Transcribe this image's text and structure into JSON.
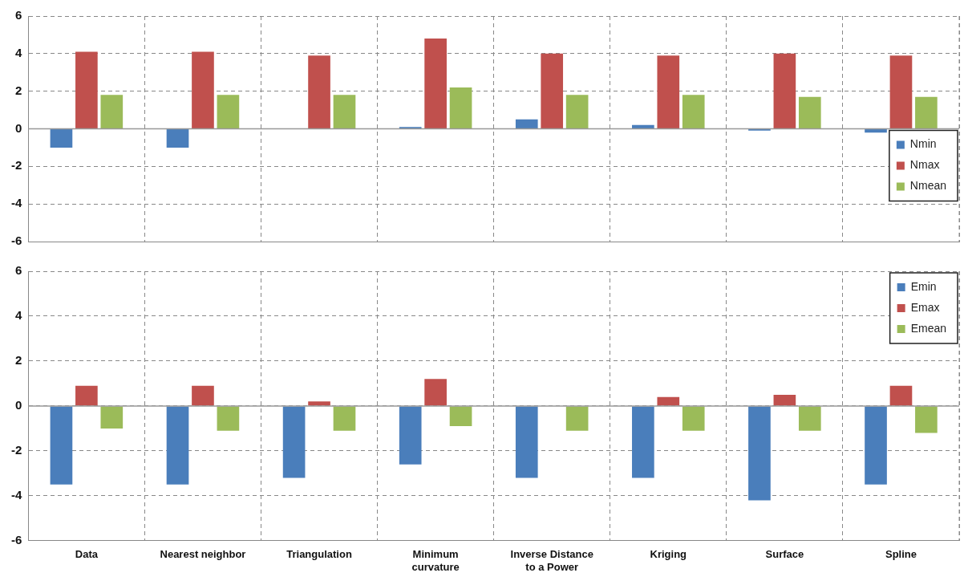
{
  "chart_data": [
    {
      "type": "bar",
      "categories": [
        null,
        null,
        null,
        null,
        null,
        null,
        null,
        null
      ],
      "series": [
        {
          "name": "Nmin",
          "color": "#4a7ebb",
          "values": [
            -1.0,
            -1.0,
            0,
            0.1,
            0.5,
            0.2,
            -0.1,
            -0.2
          ]
        },
        {
          "name": "Nmax",
          "color": "#c0504d",
          "values": [
            4.1,
            4.1,
            3.9,
            4.8,
            4.0,
            3.9,
            4.0,
            3.9
          ]
        },
        {
          "name": "Nmean",
          "color": "#9bbb59",
          "values": [
            1.8,
            1.8,
            1.8,
            2.2,
            1.8,
            1.8,
            1.7,
            1.7
          ]
        }
      ],
      "ylim": [
        -6,
        6
      ],
      "yticks": [
        -6,
        -4,
        -2,
        0,
        2,
        4,
        6
      ],
      "grid": true,
      "legend": "right",
      "tick_labels": "y",
      "ref_lines": [
        {
          "axis": "y",
          "value": 0,
          "color": "#999999"
        }
      ]
    },
    {
      "type": "bar",
      "categories": [
        "Data",
        "Nearest neighbor",
        "Triangulation",
        "Minimum curvature",
        "Inverse Distance to a Power",
        "Kriging",
        "Surface",
        "Spline"
      ],
      "series": [
        {
          "name": "Emin",
          "color": "#4a7ebb",
          "values": [
            -3.5,
            -3.5,
            -3.2,
            -2.6,
            -3.2,
            -3.2,
            -4.2,
            -3.5
          ]
        },
        {
          "name": "Emax",
          "color": "#c0504d",
          "values": [
            0.9,
            0.9,
            0.2,
            1.2,
            0,
            0.4,
            0.5,
            0.9
          ]
        },
        {
          "name": "Emean",
          "color": "#9bbb59",
          "values": [
            -1.0,
            -1.1,
            -1.1,
            -0.9,
            -1.1,
            -1.1,
            -1.1,
            -1.2
          ]
        }
      ],
      "ylim": [
        -6,
        6
      ],
      "yticks": [
        -6,
        -4,
        -2,
        0,
        2,
        4,
        6
      ],
      "grid": true,
      "legend": "top right",
      "ref_lines": [
        {
          "axis": "y",
          "value": 0,
          "color": "#999999"
        }
      ]
    }
  ]
}
